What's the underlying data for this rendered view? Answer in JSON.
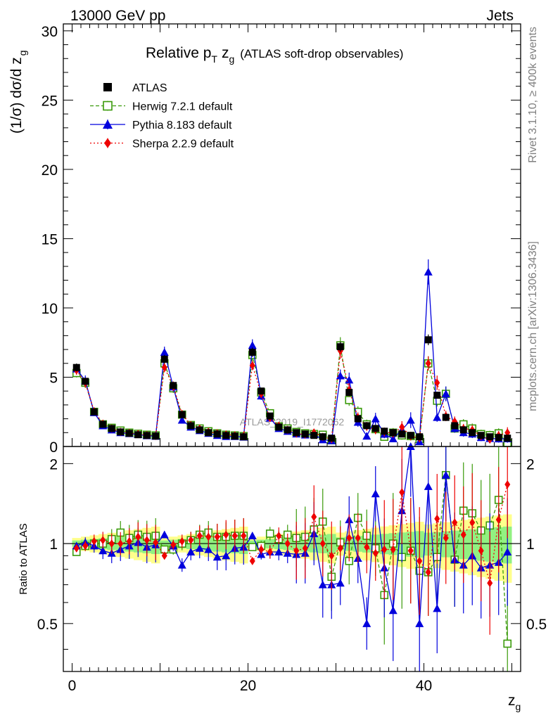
{
  "header": {
    "energy_label": "13000 GeV pp",
    "process_label": "Jets"
  },
  "side_labels": {
    "rivet": "Rivet 3.1.10, ≥ 400k events",
    "mcplots": "mcplots.cern.ch [arXiv:1306.3436]"
  },
  "chart_data": {
    "type": "scatter",
    "title_main": "Relative p",
    "title_sub_T": "T",
    "title_z": "z",
    "title_sub_g": "g",
    "title_rest": "(ATLAS soft-drop observables)",
    "watermark": "ATLAS_2019_I1772062",
    "ylabel_upper": "(1/σ) dσ/d z",
    "ylabel_upper_sub": "g",
    "ylabel_lower": "Ratio to ATLAS",
    "xlabel": "z",
    "xlabel_sub": "g",
    "xlim": [
      -1,
      51
    ],
    "ylim_upper": [
      0,
      30.5
    ],
    "ylim_lower": [
      0.33,
      2.32
    ],
    "x_ticks": [
      "0",
      "20",
      "40"
    ],
    "y_ticks_upper": [
      "0",
      "5",
      "10",
      "15",
      "20",
      "25",
      "30"
    ],
    "y_ticks_lower": [
      "0.5",
      "1",
      "2"
    ],
    "x": [
      0.5,
      1.5,
      2.5,
      3.5,
      4.5,
      5.5,
      6.5,
      7.5,
      8.5,
      9.5,
      10.5,
      11.5,
      12.5,
      13.5,
      14.5,
      15.5,
      16.5,
      17.5,
      18.5,
      19.5,
      20.5,
      21.5,
      22.5,
      23.5,
      24.5,
      25.5,
      26.5,
      27.5,
      28.5,
      29.5,
      30.5,
      31.5,
      32.5,
      33.5,
      34.5,
      35.5,
      36.5,
      37.5,
      38.5,
      39.5,
      40.5,
      41.5,
      42.5,
      43.5,
      44.5,
      45.5,
      46.5,
      47.5,
      48.5,
      49.5
    ],
    "series": [
      {
        "name": "ATLAS",
        "color": "#000000",
        "marker": "square-filled",
        "line": "none",
        "values": [
          5.7,
          4.7,
          2.5,
          1.6,
          1.3,
          1.05,
          0.95,
          0.85,
          0.8,
          0.75,
          6.3,
          4.4,
          2.3,
          1.5,
          1.2,
          1.0,
          0.9,
          0.8,
          0.75,
          0.7,
          6.8,
          4.0,
          2.2,
          1.4,
          1.2,
          1.0,
          0.9,
          0.8,
          0.7,
          0.6,
          7.2,
          3.9,
          2.0,
          1.5,
          1.3,
          1.1,
          1.0,
          0.9,
          0.8,
          0.7,
          7.7,
          3.7,
          2.1,
          1.5,
          1.2,
          1.0,
          0.8,
          0.7,
          0.65,
          0.6
        ]
      },
      {
        "name": "Herwig 7.2.1 default",
        "color": "#3a9a0a",
        "marker": "square-open",
        "line": "dashed",
        "values": [
          5.3,
          4.6,
          2.5,
          1.6,
          1.35,
          1.15,
          1.0,
          0.92,
          0.85,
          0.8,
          6.0,
          4.2,
          2.3,
          1.55,
          1.3,
          1.1,
          0.95,
          0.85,
          0.8,
          0.75,
          6.6,
          3.9,
          2.4,
          1.45,
          1.3,
          1.05,
          0.95,
          0.9,
          0.85,
          0.45,
          7.3,
          3.35,
          2.5,
          1.6,
          1.25,
          0.7,
          1.0,
          0.8,
          0.75,
          0.55,
          6.0,
          3.3,
          3.8,
          1.3,
          1.6,
          1.3,
          0.9,
          0.82,
          0.95,
          0.25
        ]
      },
      {
        "name": "Pythia 8.183 default",
        "color": "#0000dd",
        "marker": "triangle-filled",
        "line": "solid",
        "values": [
          5.6,
          4.75,
          2.45,
          1.5,
          1.2,
          1.0,
          0.93,
          0.86,
          0.78,
          0.74,
          6.8,
          4.3,
          1.9,
          1.4,
          1.15,
          0.95,
          0.8,
          0.72,
          0.72,
          0.68,
          7.3,
          3.65,
          2.05,
          1.3,
          1.1,
          0.91,
          0.83,
          0.87,
          0.49,
          0.42,
          5.1,
          4.8,
          1.75,
          0.75,
          2.0,
          0.89,
          0.56,
          1.2,
          1.9,
          0.35,
          12.6,
          2.1,
          3.8,
          1.3,
          1.0,
          0.9,
          0.65,
          0.58,
          0.55,
          0.56
        ]
      },
      {
        "name": "Sherpa 2.2.9 default",
        "color": "#ee0000",
        "marker": "diamond-filled",
        "line": "dotted",
        "values": [
          5.5,
          4.6,
          2.55,
          1.65,
          1.3,
          1.05,
          0.97,
          0.9,
          0.82,
          0.76,
          5.7,
          4.35,
          2.35,
          1.55,
          1.28,
          1.06,
          0.95,
          0.86,
          0.8,
          0.75,
          5.85,
          3.8,
          2.05,
          1.5,
          1.2,
          0.94,
          0.86,
          1.01,
          0.7,
          0.54,
          6.9,
          4.1,
          2.1,
          1.45,
          1.2,
          1.05,
          0.95,
          1.4,
          0.75,
          0.6,
          6.0,
          4.6,
          2.2,
          1.8,
          1.3,
          1.2,
          0.75,
          0.5,
          0.8,
          1.0
        ]
      }
    ],
    "ratio_series": [
      {
        "name": "Herwig 7.2.1 default",
        "values": [
          0.93,
          0.98,
          1.0,
          1.0,
          1.04,
          1.1,
          1.05,
          1.08,
          1.06,
          1.07,
          0.95,
          0.95,
          1.0,
          1.03,
          1.08,
          1.1,
          1.06,
          1.06,
          1.07,
          1.07,
          0.97,
          0.98,
          1.09,
          1.04,
          1.08,
          1.05,
          1.06,
          1.13,
          1.21,
          0.75,
          1.01,
          0.86,
          1.25,
          1.07,
          0.96,
          0.64,
          1.0,
          0.89,
          0.94,
          0.79,
          0.78,
          0.89,
          1.81,
          0.87,
          1.33,
          1.3,
          1.12,
          1.17,
          1.46,
          0.42
        ]
      },
      {
        "name": "Pythia 8.183 default",
        "values": [
          0.98,
          1.01,
          0.98,
          0.94,
          0.92,
          0.95,
          0.98,
          1.01,
          0.97,
          0.99,
          1.08,
          0.98,
          0.83,
          0.93,
          0.96,
          0.95,
          0.89,
          0.9,
          0.96,
          0.97,
          1.07,
          0.91,
          0.93,
          0.93,
          0.92,
          0.91,
          0.92,
          1.09,
          0.7,
          0.7,
          0.71,
          1.23,
          0.88,
          0.5,
          1.54,
          0.81,
          0.56,
          1.33,
          2.37,
          0.5,
          1.64,
          0.57,
          1.81,
          0.87,
          0.83,
          0.9,
          0.81,
          0.83,
          0.85,
          0.93
        ]
      },
      {
        "name": "Sherpa 2.2.9 default",
        "values": [
          0.96,
          0.98,
          1.02,
          1.03,
          1.0,
          1.0,
          1.02,
          1.06,
          1.03,
          1.01,
          0.9,
          0.99,
          1.02,
          1.03,
          1.07,
          1.06,
          1.06,
          1.08,
          1.07,
          1.07,
          0.86,
          0.95,
          0.93,
          1.07,
          1.0,
          0.94,
          0.96,
          1.26,
          1.0,
          0.9,
          0.96,
          1.05,
          1.05,
          0.97,
          0.92,
          0.95,
          0.95,
          1.56,
          0.94,
          0.86,
          0.78,
          1.24,
          1.05,
          1.2,
          1.08,
          1.2,
          0.94,
          0.71,
          1.23,
          1.67
        ]
      }
    ],
    "legend": {
      "placement": "top-left"
    }
  }
}
